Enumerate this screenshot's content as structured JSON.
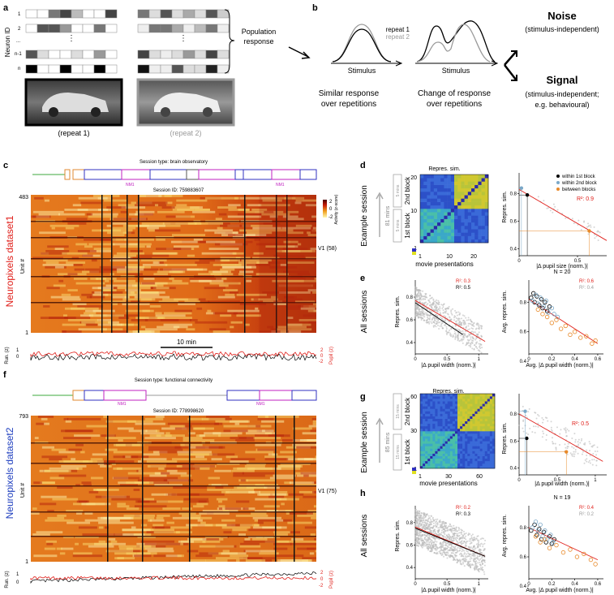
{
  "panels": {
    "a": {
      "label": "a",
      "row_labels": [
        "1",
        "2",
        "...",
        "n-1",
        "n"
      ],
      "y_axis": "Neuron ID",
      "bracket_label_1": "Population",
      "bracket_label_2": "response",
      "caption_repeat1": "(repeat 1)",
      "caption_repeat2": "(repeat 2)"
    },
    "b": {
      "label": "b",
      "legend_repeat1": "repeat 1",
      "legend_repeat2": "repeat 2",
      "stimulus_label": "Stimulus",
      "similar_line1": "Similar response",
      "similar_line2": "over repetitions",
      "change_line1": "Change of response",
      "change_line2": "over repetitions",
      "noise_title": "Noise",
      "noise_sub": "(stimulus-independent)",
      "signal_title": "Signal",
      "signal_sub1": "(stimulus-independent;",
      "signal_sub2": "e.g. behavioural)"
    },
    "c": {
      "label": "c",
      "session_type": "Session type: brain observatory",
      "session_id": "Session ID: 759883607",
      "top_unit": "483",
      "bottom_unit": "1",
      "unit_axis": "Unit #",
      "region": "V1 (58)",
      "nm1": "NM1",
      "scale": "10 min",
      "run_label": "Run. (z)",
      "pupil_label": "Pupil (z)",
      "run_ticks": [
        "1",
        "0"
      ],
      "pupil_ticks": [
        "2",
        "0",
        "-2"
      ],
      "colorbar_ticks": [
        "2",
        "0",
        "-2"
      ],
      "colorbar_label": "Activity (z-score)",
      "side_label": "Neuropixels dataset1"
    },
    "d": {
      "label": "d",
      "side_label": "Example session",
      "time_label": "81 mins",
      "block2": "2nd block",
      "block1": "1st block",
      "mins_top": "5 mins",
      "mins_bottom": "5 mins",
      "matrix_title": "Repres. sim.",
      "matrix_xlabel": "movie presentations",
      "matrix_yticks": [
        "20",
        "10",
        "1"
      ],
      "matrix_xticks": [
        "1",
        "10",
        "20"
      ],
      "scatter_ylabel": "Repres. sim.",
      "scatter_xlabel": "|Δ pupil size (norm.)|",
      "legend": [
        "within 1st block",
        "within 2nd block",
        "between blocks"
      ],
      "r2": "R²: 0.9",
      "yticks": [
        "0.8",
        "0.6",
        "0.4"
      ],
      "xticks": [
        "0",
        "0.5"
      ]
    },
    "e": {
      "label": "e",
      "side_label": "All sessions",
      "left_ylabel": "Repres. sim.",
      "left_xlabel": "|Δ pupil width (norm.)|",
      "left_r2_red": "R²: 0.3",
      "left_r2_black": "R²: 0.5",
      "left_yticks": [
        "0.8",
        "0.6",
        "0.4"
      ],
      "left_xticks": [
        "0",
        "0.5",
        "1"
      ],
      "right_title": "N = 20",
      "right_ylabel": "Avg. repres. sim.",
      "right_xlabel": "Avg. |Δ pupil width (norm.)|",
      "right_r2_red": "R²: 0.6",
      "right_r2_grey": "R²: 0.4",
      "right_yticks": [
        "0.8",
        "0.6",
        "0.4"
      ],
      "right_xticks": [
        "0",
        "0.2",
        "0.4",
        "0.6"
      ]
    },
    "f": {
      "label": "f",
      "session_type": "Session type: functional connectivity",
      "session_id": "Session ID: 778998620",
      "top_unit": "793",
      "bottom_unit": "1",
      "unit_axis": "Unit #",
      "region": "V1 (75)",
      "nm1": "NM1",
      "run_label": "Run. (z)",
      "pupil_label": "Pupil (z)",
      "run_ticks": [
        "1",
        "0"
      ],
      "pupil_ticks": [
        "2",
        "0",
        "-2"
      ],
      "side_label": "Neuropixels dataset2"
    },
    "g": {
      "label": "g",
      "side_label": "Example session",
      "time_label": "85 mins",
      "block2": "2nd block",
      "block1": "1st block",
      "mins_top": "15 mins",
      "mins_bottom": "15 mins",
      "matrix_title": "Repres. sim.",
      "matrix_xlabel": "movie presentations",
      "matrix_yticks": [
        "60",
        "30",
        "1"
      ],
      "matrix_xticks": [
        "1",
        "30",
        "60"
      ],
      "scatter_ylabel": "Repres. sim.",
      "scatter_xlabel": "|Δ pupil width (norm.)|",
      "r2": "R²: 0.5",
      "yticks": [
        "0.8",
        "0.6",
        "0.4"
      ],
      "xticks": [
        "0",
        "0.5",
        "1"
      ]
    },
    "h": {
      "label": "h",
      "side_label": "All sessions",
      "left_ylabel": "Repres. sim.",
      "left_xlabel": "|Δ pupil width (norm.)|",
      "left_r2_red": "R²: 0.2",
      "left_r2_black": "R²: 0.3",
      "left_yticks": [
        "0.8",
        "0.6",
        "0.4"
      ],
      "left_xticks": [
        "0",
        "0.5",
        "1"
      ],
      "right_title": "N = 19",
      "right_ylabel": "Avg. repres. sim.",
      "right_xlabel": "Avg. |Δ pupil width (norm.)|",
      "right_r2_red": "R²: 0.4",
      "right_r2_grey": "R²: 0.2",
      "right_yticks": [
        "0.8",
        "0.6",
        "0.4"
      ],
      "right_xticks": [
        "0",
        "0.2",
        "0.4",
        "0.6"
      ]
    }
  },
  "colors": {
    "red": "#e0201b",
    "orange": "#e88a2a",
    "blue_label": "#1f3fbf",
    "grey": "#9a9a9a",
    "dark": "#111111"
  },
  "chart_data": [
    {
      "panel": "d-right",
      "type": "scatter",
      "xlabel": "|Δ pupil size (norm.)|",
      "ylabel": "Repres. sim.",
      "xlim": [
        0,
        0.75
      ],
      "ylim": [
        0.35,
        0.95
      ],
      "fit": {
        "x": [
          0,
          0.75
        ],
        "y": [
          0.83,
          0.46
        ],
        "r2": 0.9
      },
      "series": [
        {
          "name": "within 1st block",
          "x": [
            0.07
          ],
          "y": [
            0.79
          ]
        },
        {
          "name": "within 2nd block",
          "x": [
            0.02
          ],
          "y": [
            0.84
          ]
        },
        {
          "name": "between blocks",
          "x": [
            0.6
          ],
          "y": [
            0.53
          ]
        }
      ]
    },
    {
      "panel": "e-left",
      "type": "scatter",
      "xlabel": "|Δ pupil width (norm.)|",
      "ylabel": "Repres. sim.",
      "xlim": [
        0,
        1.15
      ],
      "ylim": [
        0.3,
        0.95
      ],
      "fits": [
        {
          "name": "red",
          "x": [
            0,
            1.1
          ],
          "y": [
            0.77,
            0.41
          ],
          "r2": 0.3
        },
        {
          "name": "black",
          "x": [
            0,
            0.75
          ],
          "y": [
            0.75,
            0.47
          ],
          "r2": 0.5
        }
      ]
    },
    {
      "panel": "e-right",
      "type": "scatter",
      "title": "N = 20",
      "xlabel": "Avg. |Δ pupil width (norm.)|",
      "ylabel": "Avg. repres. sim.",
      "xlim": [
        0,
        0.65
      ],
      "ylim": [
        0.45,
        0.95
      ],
      "fits": [
        {
          "name": "red",
          "x": [
            0,
            0.6
          ],
          "y": [
            0.82,
            0.52
          ],
          "r2": 0.6
        }
      ],
      "series": [
        {
          "name": "within 1st block",
          "x": [
            0.02,
            0.04,
            0.05,
            0.07,
            0.09,
            0.11,
            0.12,
            0.14,
            0.16,
            0.18
          ],
          "y": [
            0.83,
            0.86,
            0.8,
            0.84,
            0.78,
            0.82,
            0.76,
            0.8,
            0.74,
            0.77
          ]
        },
        {
          "name": "within 2nd block",
          "x": [
            0.03,
            0.06,
            0.08,
            0.1,
            0.13,
            0.15,
            0.17,
            0.2,
            0.22,
            0.25
          ],
          "y": [
            0.81,
            0.85,
            0.79,
            0.83,
            0.77,
            0.81,
            0.73,
            0.76,
            0.72,
            0.7
          ]
        },
        {
          "name": "between blocks",
          "x": [
            0.08,
            0.12,
            0.16,
            0.2,
            0.24,
            0.28,
            0.32,
            0.36,
            0.4,
            0.45,
            0.5,
            0.55,
            0.58
          ],
          "y": [
            0.75,
            0.72,
            0.7,
            0.66,
            0.68,
            0.62,
            0.64,
            0.58,
            0.6,
            0.56,
            0.57,
            0.52,
            0.54
          ]
        }
      ]
    },
    {
      "panel": "g-right",
      "type": "scatter",
      "xlabel": "|Δ pupil width (norm.)|",
      "ylabel": "Repres. sim.",
      "xlim": [
        0,
        1.15
      ],
      "ylim": [
        0.35,
        0.95
      ],
      "fit": {
        "x": [
          0,
          1.1
        ],
        "y": [
          0.8,
          0.45
        ],
        "r2": 0.5
      },
      "series": [
        {
          "name": "within 1st block",
          "x": [
            0.1
          ],
          "y": [
            0.62
          ]
        },
        {
          "name": "within 2nd block",
          "x": [
            0.08
          ],
          "y": [
            0.82
          ]
        },
        {
          "name": "between blocks",
          "x": [
            0.62
          ],
          "y": [
            0.52
          ]
        }
      ]
    },
    {
      "panel": "h-left",
      "type": "scatter",
      "xlabel": "|Δ pupil width (norm.)|",
      "ylabel": "Repres. sim.",
      "xlim": [
        0,
        1.15
      ],
      "ylim": [
        0.3,
        0.95
      ],
      "fits": [
        {
          "name": "red",
          "x": [
            0,
            1.1
          ],
          "y": [
            0.76,
            0.5
          ],
          "r2": 0.2
        },
        {
          "name": "black",
          "x": [
            0,
            1.1
          ],
          "y": [
            0.75,
            0.5
          ],
          "r2": 0.3
        }
      ]
    },
    {
      "panel": "h-right",
      "type": "scatter",
      "title": "N = 19",
      "xlabel": "Avg. |Δ pupil width (norm.)|",
      "ylabel": "Avg. repres. sim.",
      "xlim": [
        0,
        0.65
      ],
      "ylim": [
        0.45,
        0.95
      ],
      "fits": [
        {
          "name": "red",
          "x": [
            0,
            0.6
          ],
          "y": [
            0.8,
            0.58
          ],
          "r2": 0.4
        }
      ],
      "series": [
        {
          "name": "within 1st block",
          "x": [
            0.02,
            0.05,
            0.07,
            0.09,
            0.11,
            0.13,
            0.15,
            0.18,
            0.2,
            0.22
          ],
          "y": [
            0.78,
            0.82,
            0.75,
            0.79,
            0.72,
            0.77,
            0.7,
            0.74,
            0.69,
            0.72
          ]
        },
        {
          "name": "within 2nd block",
          "x": [
            0.03,
            0.06,
            0.08,
            0.1,
            0.12,
            0.14,
            0.16,
            0.19,
            0.21
          ],
          "y": [
            0.8,
            0.84,
            0.78,
            0.82,
            0.74,
            0.78,
            0.72,
            0.75,
            0.7
          ]
        },
        {
          "name": "between blocks",
          "x": [
            0.06,
            0.1,
            0.14,
            0.18,
            0.24,
            0.3,
            0.36,
            0.42,
            0.48,
            0.54,
            0.58
          ],
          "y": [
            0.74,
            0.7,
            0.72,
            0.66,
            0.68,
            0.63,
            0.65,
            0.6,
            0.62,
            0.58,
            0.55
          ]
        }
      ]
    }
  ]
}
